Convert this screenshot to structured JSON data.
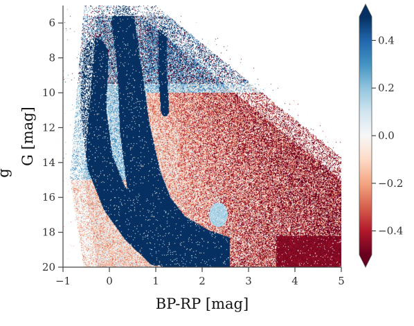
{
  "chart_data": {
    "type": "heatmap",
    "description_kind": "color-magnitude diagram colored by a diverging value",
    "title": "",
    "xlabel": "BP-RP [mag]",
    "ylabel": "G [mag]",
    "y_label_truncated_prefix": "g",
    "xlim": [
      -1,
      5
    ],
    "ylim": [
      20,
      5
    ],
    "y_inverted": true,
    "x_ticks": [
      -1,
      0,
      1,
      2,
      3,
      4,
      5
    ],
    "x_tick_labels": [
      "−1",
      "0",
      "1",
      "2",
      "3",
      "4",
      "5"
    ],
    "y_ticks": [
      6,
      8,
      10,
      12,
      14,
      16,
      18,
      20
    ],
    "y_tick_labels": [
      "6",
      "8",
      "10",
      "12",
      "14",
      "16",
      "18",
      "20"
    ],
    "colorbar": {
      "cmap": "RdBu",
      "vmin": -0.5,
      "vmax": 0.5,
      "extend": "both",
      "ticks": [
        -0.4,
        -0.2,
        0.0,
        0.2,
        0.4
      ],
      "tick_labels": [
        "−0.4",
        "−0.2",
        "0.0",
        "0.2",
        "0.4"
      ],
      "colors": [
        "#67001f",
        "#b2182b",
        "#d6604d",
        "#f4a582",
        "#fddbc7",
        "#f7f7f7",
        "#d1e5f0",
        "#92c5de",
        "#4393c3",
        "#2166ac",
        "#053061"
      ]
    },
    "features": [
      {
        "name": "main sequence band",
        "value": 0.5,
        "points": [
          [
            0.3,
            6
          ],
          [
            0.45,
            9
          ],
          [
            0.55,
            12
          ],
          [
            0.75,
            15
          ],
          [
            1.0,
            17
          ],
          [
            1.4,
            18.5
          ],
          [
            2.0,
            19.5
          ],
          [
            2.5,
            20
          ]
        ]
      },
      {
        "name": "white dwarf sequence",
        "value": 0.5,
        "points": [
          [
            -0.3,
            8
          ],
          [
            -0.35,
            11
          ],
          [
            -0.2,
            14
          ],
          [
            0.1,
            16
          ],
          [
            0.5,
            17.5
          ],
          [
            1.0,
            18.8
          ]
        ]
      },
      {
        "name": "giant branch",
        "value": 0.5,
        "points": [
          [
            1.15,
            6.5
          ],
          [
            1.15,
            9
          ],
          [
            1.2,
            11
          ]
        ]
      },
      {
        "name": "red clump blob",
        "value": 0.2,
        "points": [
          [
            2.35,
            17.0
          ]
        ]
      },
      {
        "name": "faint red corner",
        "value": -0.5,
        "points": [
          [
            4.5,
            19.2
          ]
        ]
      }
    ]
  }
}
